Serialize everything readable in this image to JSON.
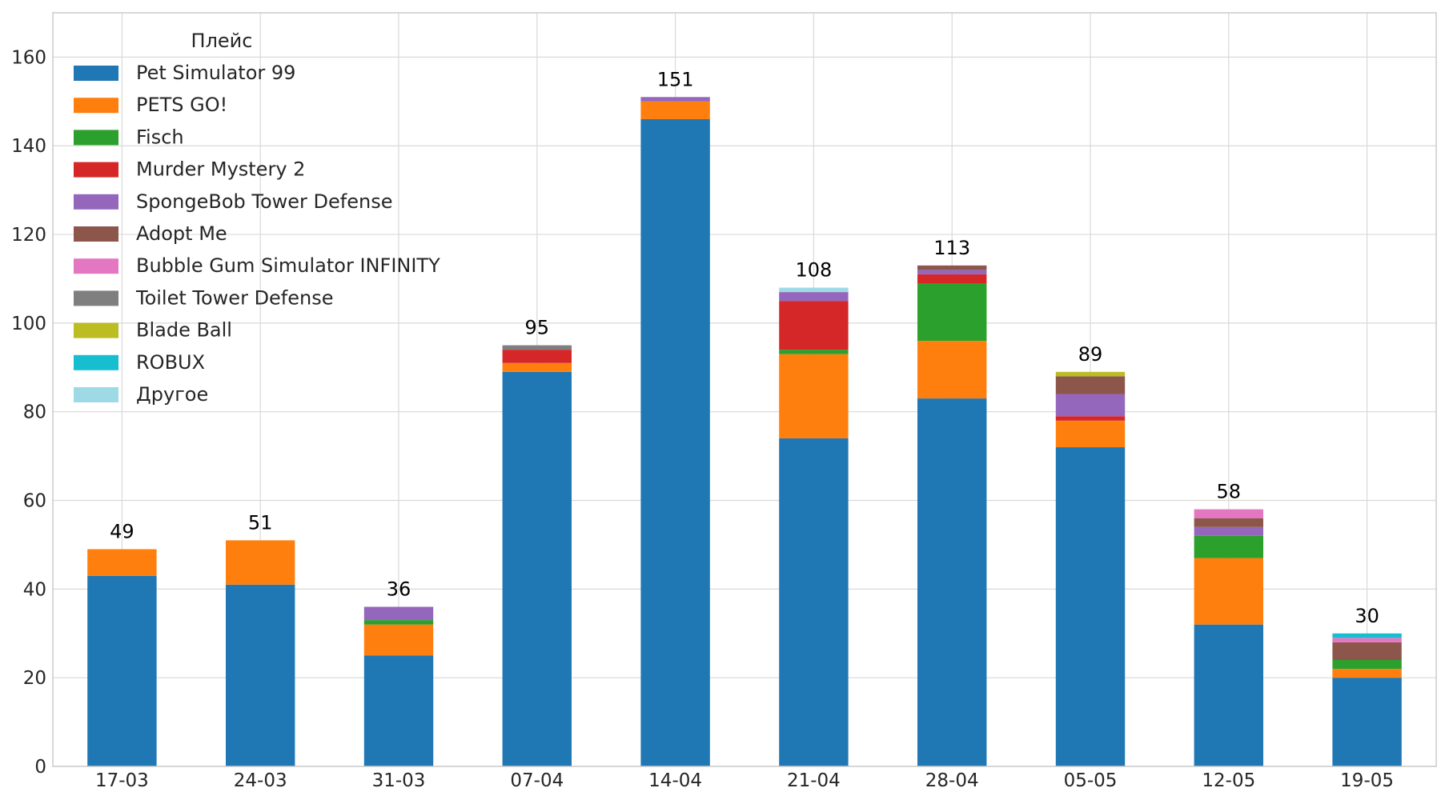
{
  "chart_data": {
    "type": "bar",
    "stacked": true,
    "title": "",
    "xlabel": "",
    "ylabel": "",
    "ylim": [
      0,
      170
    ],
    "yticks": [
      0,
      20,
      40,
      60,
      80,
      100,
      120,
      140,
      160
    ],
    "grid": true,
    "legend_placement": "top-left",
    "legend_title": "Плейс",
    "categories": [
      "17-03",
      "24-03",
      "31-03",
      "07-04",
      "14-04",
      "21-04",
      "28-04",
      "05-05",
      "12-05",
      "19-05"
    ],
    "totals": [
      49,
      51,
      36,
      95,
      151,
      108,
      113,
      89,
      58,
      30
    ],
    "series": [
      {
        "name": "Pet Simulator 99",
        "color": "#1f77b4",
        "values": [
          43,
          41,
          25,
          89,
          146,
          74,
          83,
          72,
          32,
          20
        ]
      },
      {
        "name": "PETS GO!",
        "color": "#ff7f0e",
        "values": [
          6,
          10,
          7,
          2,
          4,
          19,
          13,
          6,
          15,
          2
        ]
      },
      {
        "name": "Fisch",
        "color": "#2ca02c",
        "values": [
          0,
          0,
          1,
          0,
          0,
          1,
          13,
          0,
          5,
          2
        ]
      },
      {
        "name": "Murder Mystery 2",
        "color": "#d62728",
        "values": [
          0,
          0,
          0,
          3,
          0,
          11,
          2,
          1,
          0,
          0
        ]
      },
      {
        "name": "SpongeBob Tower Defense",
        "color": "#9467bd",
        "values": [
          0,
          0,
          3,
          0,
          1,
          2,
          1,
          5,
          2,
          0
        ]
      },
      {
        "name": "Adopt Me",
        "color": "#8c564b",
        "values": [
          0,
          0,
          0,
          0,
          0,
          0,
          1,
          4,
          2,
          4
        ]
      },
      {
        "name": "Bubble Gum Simulator INFINITY",
        "color": "#e377c2",
        "values": [
          0,
          0,
          0,
          0,
          0,
          0,
          0,
          0,
          2,
          1
        ]
      },
      {
        "name": "Toilet Tower Defense",
        "color": "#7f7f7f",
        "values": [
          0,
          0,
          0,
          1,
          0,
          0,
          0,
          0,
          0,
          0
        ]
      },
      {
        "name": "Blade Ball",
        "color": "#bcbd22",
        "values": [
          0,
          0,
          0,
          0,
          0,
          0,
          0,
          1,
          0,
          0
        ]
      },
      {
        "name": "ROBUX",
        "color": "#17becf",
        "values": [
          0,
          0,
          0,
          0,
          0,
          0,
          0,
          0,
          0,
          1
        ]
      },
      {
        "name": "Другое",
        "color": "#9edae5",
        "values": [
          0,
          0,
          0,
          0,
          0,
          1,
          0,
          0,
          0,
          0
        ]
      }
    ]
  }
}
